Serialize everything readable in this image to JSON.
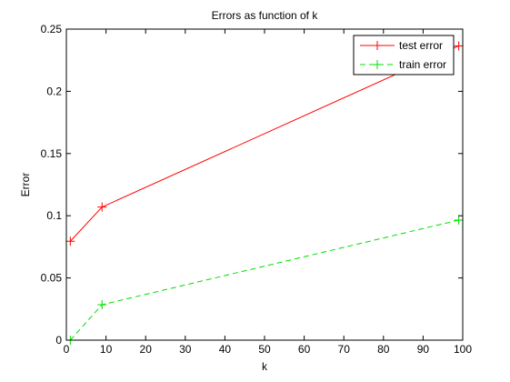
{
  "chart_data": {
    "type": "line",
    "title": "Errors as function of k",
    "xlabel": "k",
    "ylabel": "Error",
    "xlim": [
      0,
      100
    ],
    "ylim": [
      0,
      0.25
    ],
    "xticks": [
      0,
      10,
      20,
      30,
      40,
      50,
      60,
      70,
      80,
      90,
      100
    ],
    "yticks": [
      0,
      0.05,
      0.1,
      0.15,
      0.2,
      0.25
    ],
    "xtick_labels": [
      "0",
      "10",
      "20",
      "30",
      "40",
      "50",
      "60",
      "70",
      "80",
      "90",
      "100"
    ],
    "ytick_labels": [
      "0",
      "0.05",
      "0.1",
      "0.15",
      "0.2",
      "0.25"
    ],
    "grid": false,
    "legend_position": "top-right",
    "series": [
      {
        "name": "test error",
        "color": "#ff0000",
        "line_style": "solid",
        "marker": "plus",
        "x": [
          1,
          9,
          99
        ],
        "y": [
          0.0795,
          0.107,
          0.2365
        ]
      },
      {
        "name": "train error",
        "color": "#00dd00",
        "line_style": "dashed",
        "marker": "plus",
        "x": [
          1,
          9,
          99
        ],
        "y": [
          0.0,
          0.0285,
          0.0965
        ]
      }
    ]
  }
}
